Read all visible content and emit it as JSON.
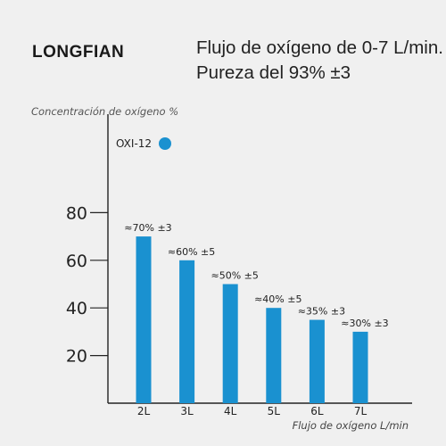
{
  "brand": "LONGFIAN",
  "headline": {
    "line1": "Flujo de oxígeno de 0-7 L/min.",
    "line2": "Pureza del 93% ±3"
  },
  "colors": {
    "bar": "#1a91d0",
    "axis": "#222222",
    "background": "#f0f0f0"
  },
  "chart_data": {
    "type": "bar",
    "ylabel": "Concentración de oxígeno %",
    "xlabel": "Flujo de oxígeno L/min",
    "categories": [
      "2L",
      "3L",
      "4L",
      "5L",
      "6L",
      "7L"
    ],
    "series": [
      {
        "name": "OXI-12",
        "values": [
          70,
          60,
          50,
          40,
          35,
          30
        ]
      }
    ],
    "data_labels": [
      "≈70% ±3",
      "≈60% ±5",
      "≈50% ±5",
      "≈40% ±5",
      "≈35% ±3",
      "≈30% ±3"
    ],
    "yticks": [
      20,
      40,
      60,
      80
    ],
    "ylim": [
      0,
      120
    ],
    "grid": false,
    "legend_position": "top-left"
  }
}
